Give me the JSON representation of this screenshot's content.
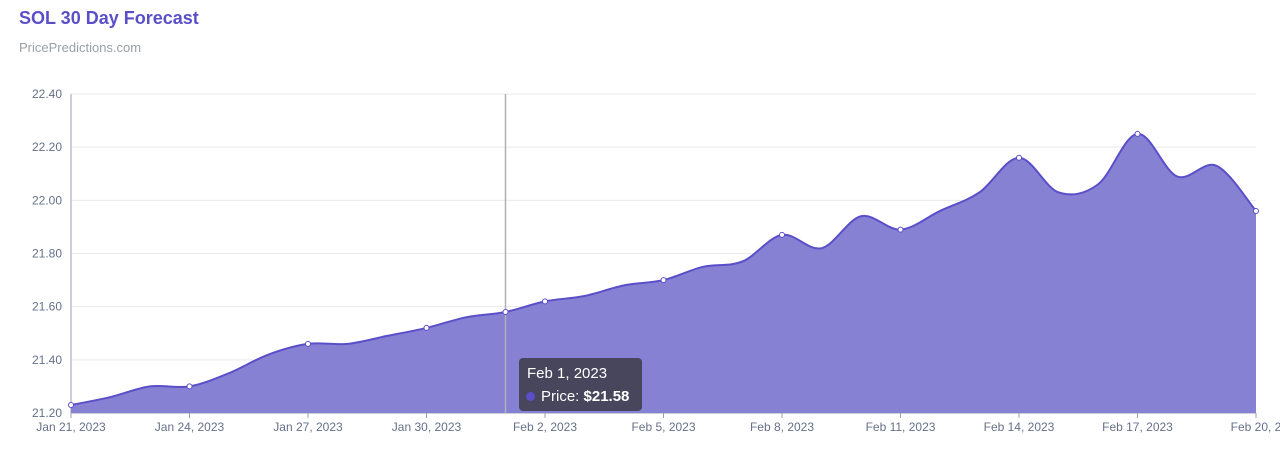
{
  "header": {
    "title": "SOL 30 Day Forecast",
    "subtitle": "PricePredictions.com"
  },
  "tooltip": {
    "date": "Feb 1, 2023",
    "label": "Price:",
    "value": "$21.58"
  },
  "colors": {
    "accent": "#5b4fc9",
    "area_fill": "#8781d4",
    "line": "#5b4fc9",
    "grid": "#e9e9ee",
    "axis_text": "#66708a"
  },
  "chart_data": {
    "type": "area",
    "title": "SOL 30 Day Forecast",
    "xlabel": "",
    "ylabel": "",
    "ylim": [
      21.2,
      22.4
    ],
    "yticks": [
      "22.40",
      "22.20",
      "22.00",
      "21.80",
      "21.60",
      "21.40",
      "21.20"
    ],
    "xticks": [
      "Jan 21, 2023",
      "Jan 24, 2023",
      "Jan 27, 2023",
      "Jan 30, 2023",
      "Feb 2, 2023",
      "Feb 5, 2023",
      "Feb 8, 2023",
      "Feb 11, 2023",
      "Feb 14, 2023",
      "Feb 17, 2023",
      "Feb 20, 2"
    ],
    "grid": true,
    "highlighted_date": "Feb 1, 2023",
    "series": [
      {
        "x": [
          "Jan 21, 2023",
          "Jan 22, 2023",
          "Jan 23, 2023",
          "Jan 24, 2023",
          "Jan 25, 2023",
          "Jan 26, 2023",
          "Jan 27, 2023",
          "Jan 28, 2023",
          "Jan 29, 2023",
          "Jan 30, 2023",
          "Jan 31, 2023",
          "Feb 1, 2023",
          "Feb 2, 2023",
          "Feb 3, 2023",
          "Feb 4, 2023",
          "Feb 5, 2023",
          "Feb 6, 2023",
          "Feb 7, 2023",
          "Feb 8, 2023",
          "Feb 9, 2023",
          "Feb 10, 2023",
          "Feb 11, 2023",
          "Feb 12, 2023",
          "Feb 13, 2023",
          "Feb 14, 2023",
          "Feb 15, 2023",
          "Feb 16, 2023",
          "Feb 17, 2023",
          "Feb 18, 2023",
          "Feb 19, 2023",
          "Feb 20, 2023"
        ],
        "values": [
          21.23,
          21.26,
          21.3,
          21.3,
          21.35,
          21.42,
          21.46,
          21.46,
          21.49,
          21.52,
          21.56,
          21.58,
          21.62,
          21.64,
          21.68,
          21.7,
          21.75,
          21.77,
          21.87,
          21.82,
          21.94,
          21.89,
          21.96,
          22.03,
          22.16,
          22.03,
          22.06,
          22.25,
          22.09,
          22.13,
          21.96
        ]
      }
    ]
  }
}
